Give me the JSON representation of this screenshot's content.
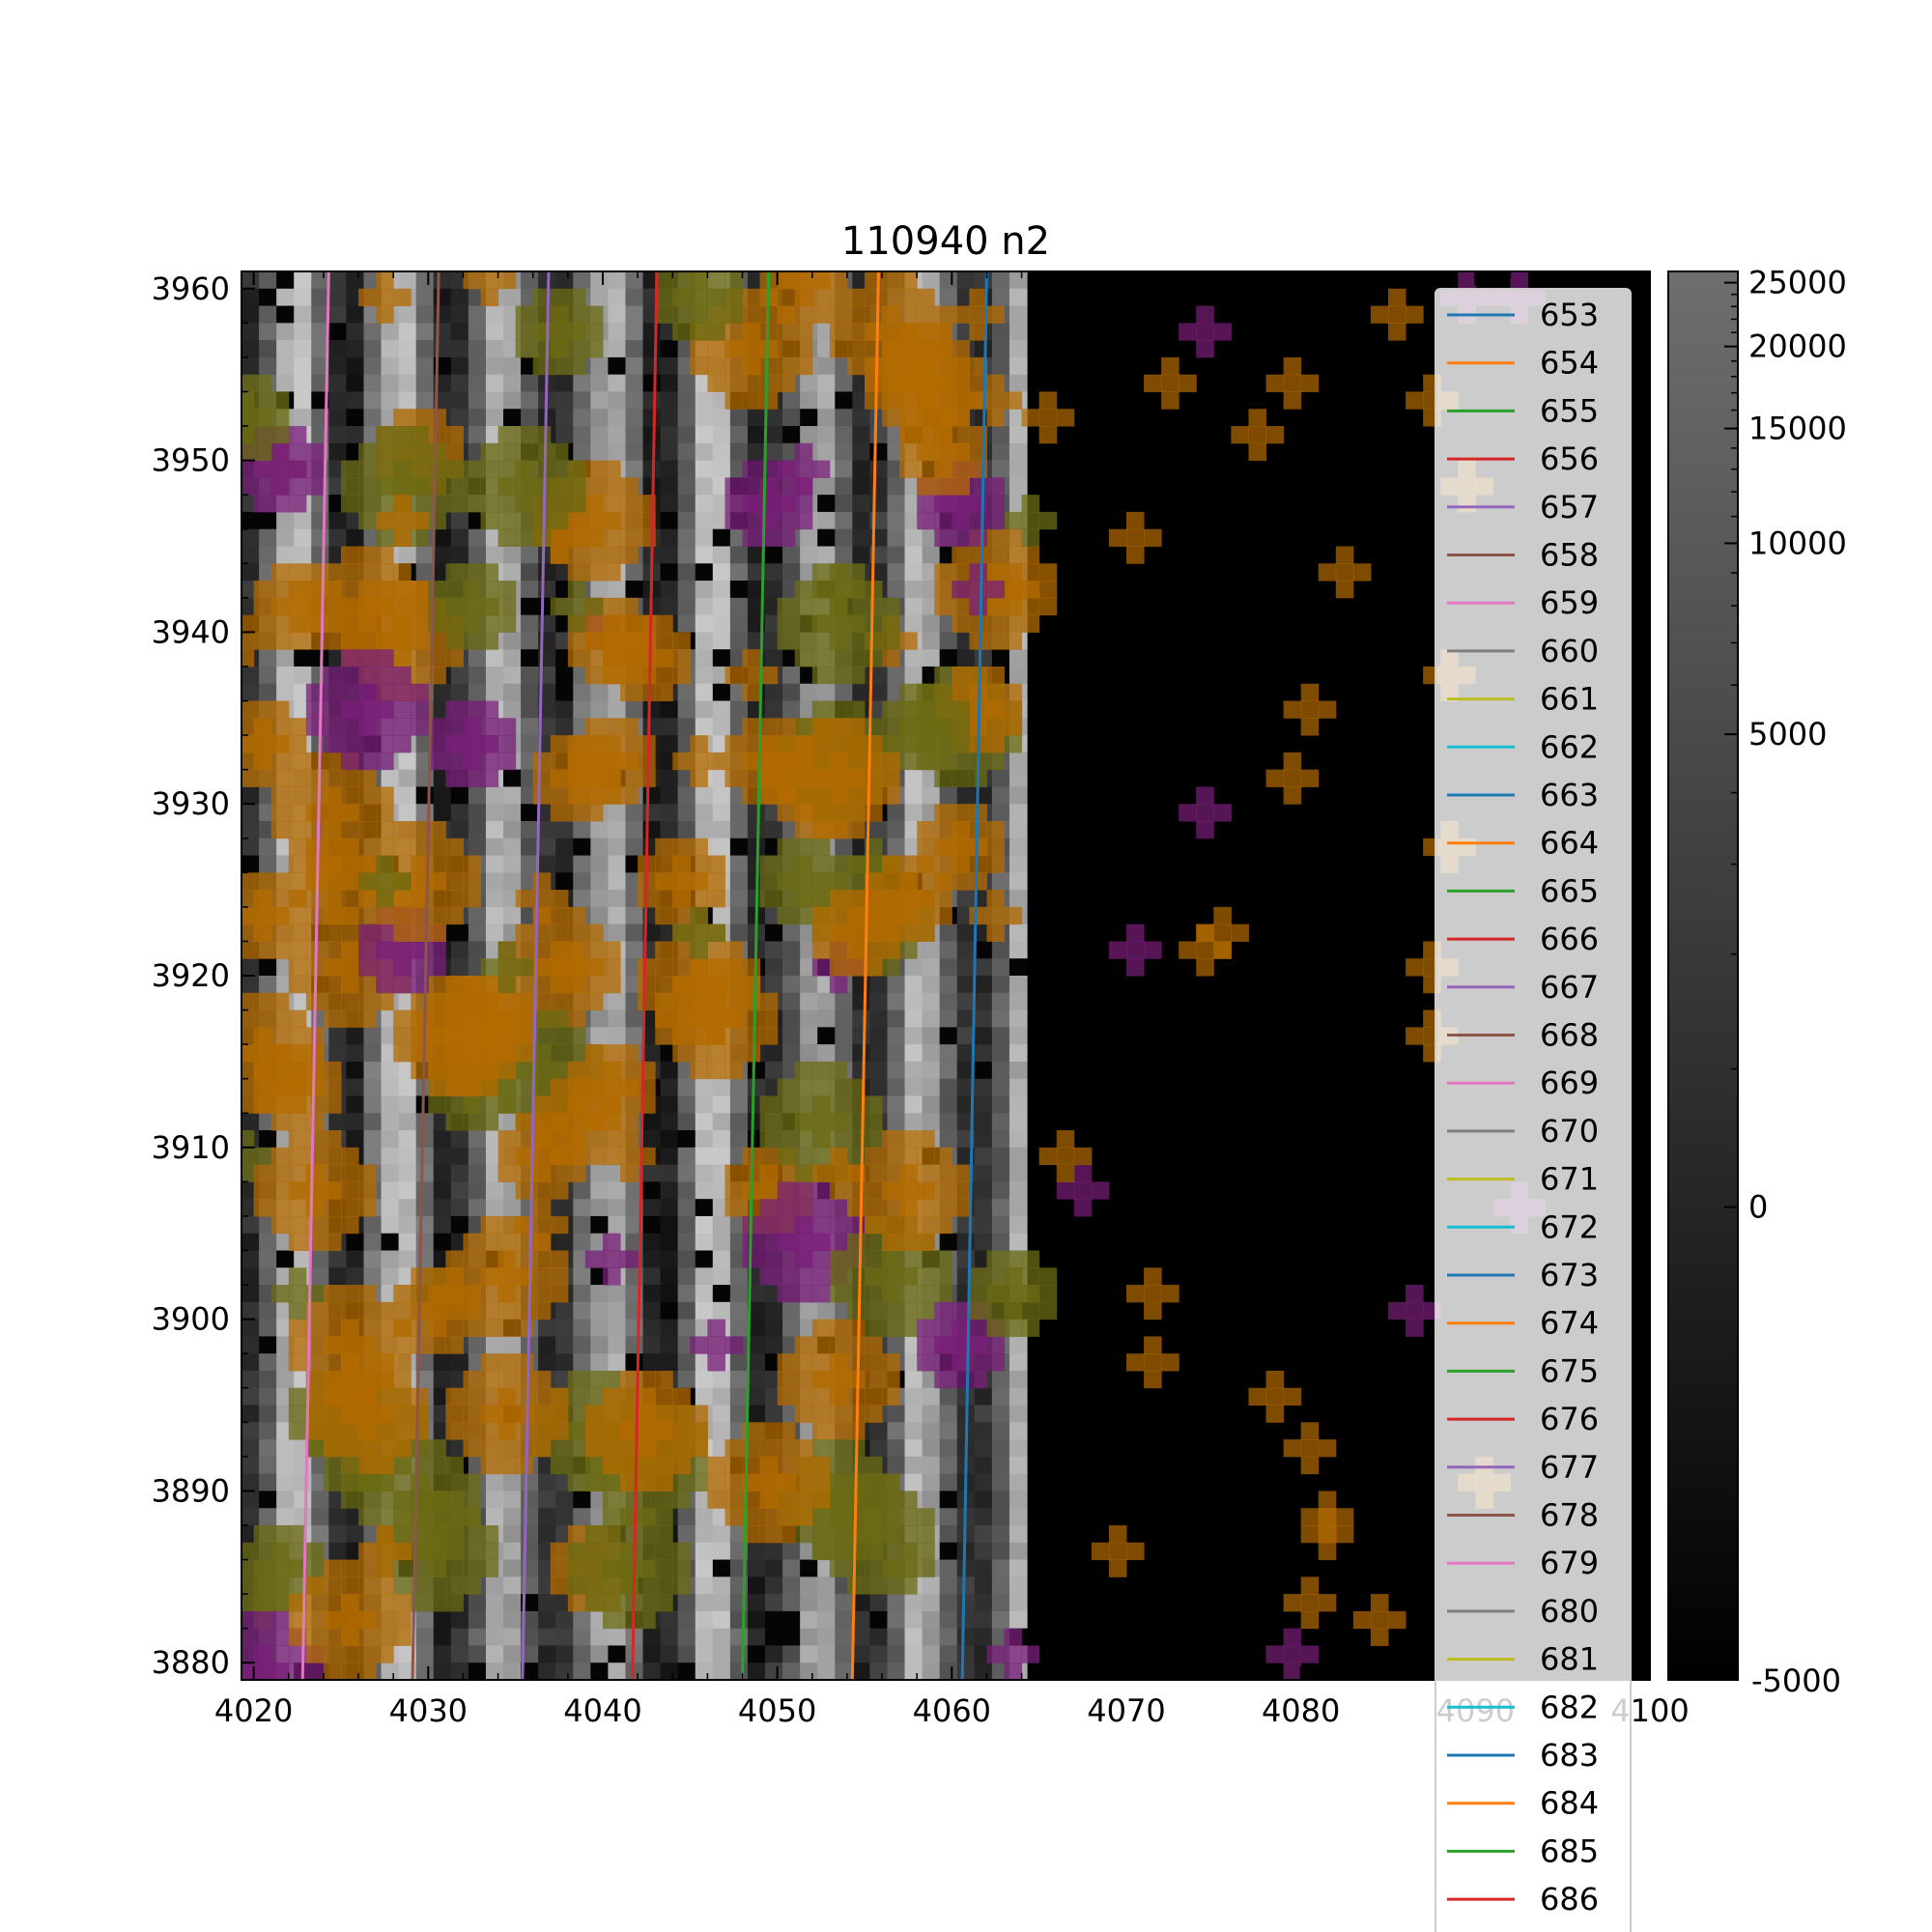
{
  "chart_data": {
    "type": "heatmap",
    "title": "110940 n2",
    "xlabel": "",
    "ylabel": "",
    "xlim": [
      4019.3,
      4100
    ],
    "ylim": [
      3879,
      3961
    ],
    "x_ticks": [
      4020,
      4030,
      4040,
      4050,
      4060,
      4070,
      4080,
      4090,
      4100
    ],
    "y_ticks": [
      3880,
      3890,
      3900,
      3910,
      3920,
      3930,
      3940,
      3950,
      3960
    ],
    "image_x_range": [
      4019.3,
      4064.5
    ],
    "colorbar": {
      "colormap": "gray",
      "range": [
        -5000,
        26000
      ],
      "ticks": [
        0,
        5000,
        10000,
        15000,
        20000,
        25000
      ],
      "extra_label": "-5000"
    },
    "overlays": [
      {
        "name": "orange highlight",
        "color": "#b36b00"
      },
      {
        "name": "olive highlight",
        "color": "#6b6b14"
      },
      {
        "name": "purple highlight",
        "color": "#7a1f7a"
      }
    ],
    "legend": {
      "position": "right",
      "entries": [
        "653",
        "654",
        "655",
        "656",
        "657",
        "658",
        "659",
        "660",
        "661",
        "662",
        "663",
        "664",
        "665",
        "666",
        "667",
        "668",
        "669",
        "670",
        "671",
        "672",
        "673",
        "674",
        "675",
        "676",
        "677",
        "678",
        "679",
        "680",
        "681",
        "682",
        "683",
        "684",
        "685",
        "686"
      ]
    },
    "palette": [
      "#1f77b4",
      "#ff7f0e",
      "#2ca02c",
      "#d62728",
      "#9467bd",
      "#8c564b",
      "#e377c2",
      "#7f7f7f",
      "#bcbd22",
      "#17becf"
    ],
    "series": [
      {
        "name": "653",
        "color": "#1f77b4",
        "x": [
          4060.6,
          4062.0
        ],
        "y": [
          3879,
          3961
        ]
      },
      {
        "name": "654",
        "color": "#ff7f0e",
        "x": [
          4054.3,
          4055.8
        ],
        "y": [
          3879,
          3961
        ]
      },
      {
        "name": "655",
        "color": "#2ca02c",
        "x": [
          4048.0,
          4049.5
        ],
        "y": [
          3879,
          3961
        ]
      },
      {
        "name": "656",
        "color": "#d62728",
        "x": [
          4041.7,
          4043.1
        ],
        "y": [
          3879,
          3961
        ]
      },
      {
        "name": "657",
        "color": "#9467bd",
        "x": [
          4035.4,
          4036.9
        ],
        "y": [
          3879,
          3961
        ]
      },
      {
        "name": "658",
        "color": "#8c564b",
        "x": [
          4029.1,
          4030.6
        ],
        "y": [
          3879,
          3961
        ]
      },
      {
        "name": "659",
        "color": "#e377c2",
        "x": [
          4022.8,
          4024.3
        ],
        "y": [
          3879,
          3961
        ]
      }
    ]
  }
}
